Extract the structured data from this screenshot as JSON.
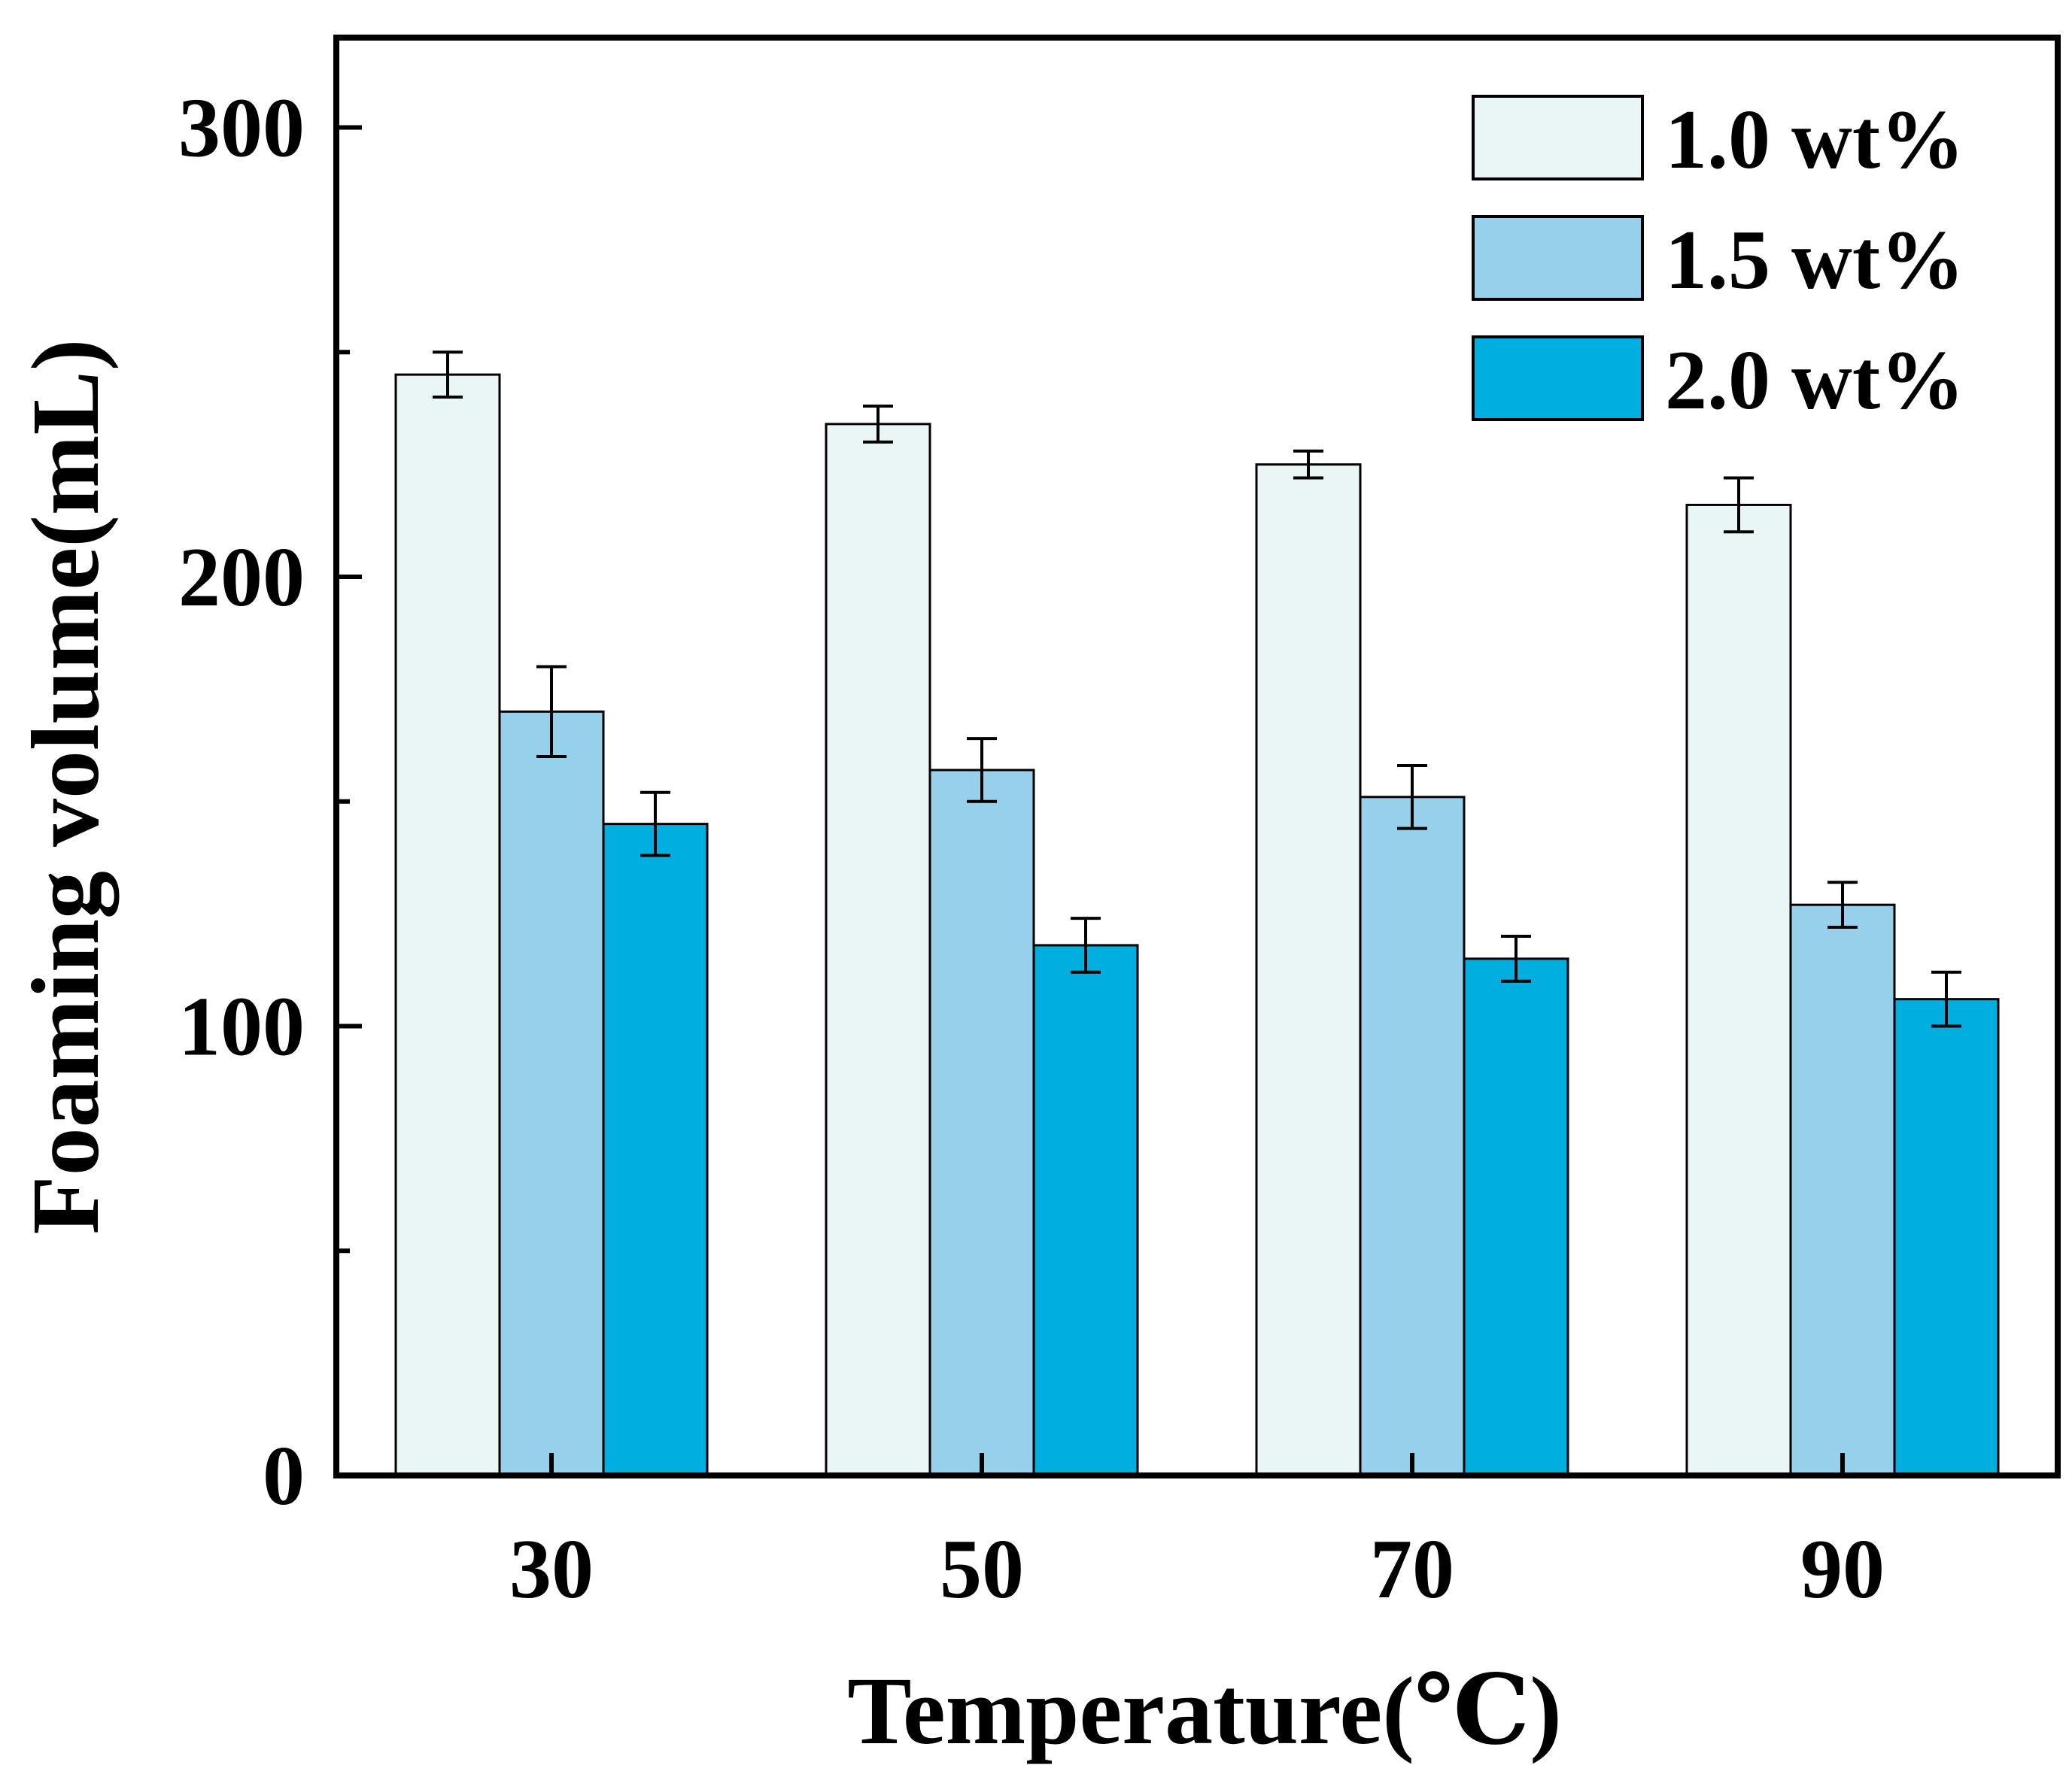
{
  "chart_data": {
    "type": "bar",
    "title": "",
    "xlabel": "Temperature(℃)",
    "ylabel": "Foaming volume(mL)",
    "categories": [
      "30",
      "50",
      "70",
      "90"
    ],
    "ylim": [
      0,
      320
    ],
    "yticks": [
      0,
      100,
      200,
      300
    ],
    "y_minor_ticks": [
      50,
      150,
      250
    ],
    "legend_position": "top-right",
    "grid": false,
    "series": [
      {
        "name": "1.0 wt%",
        "color": "#EAF6F6",
        "values": [
          245,
          234,
          225,
          216
        ],
        "errors": [
          5,
          4,
          3,
          6
        ]
      },
      {
        "name": "1.5 wt%",
        "color": "#96D0EA",
        "values": [
          170,
          157,
          151,
          127
        ],
        "errors": [
          10,
          7,
          7,
          5
        ]
      },
      {
        "name": "2.0 wt%",
        "color": "#00AEDF",
        "values": [
          145,
          118,
          115,
          106
        ],
        "errors": [
          7,
          6,
          5,
          6
        ]
      }
    ]
  }
}
